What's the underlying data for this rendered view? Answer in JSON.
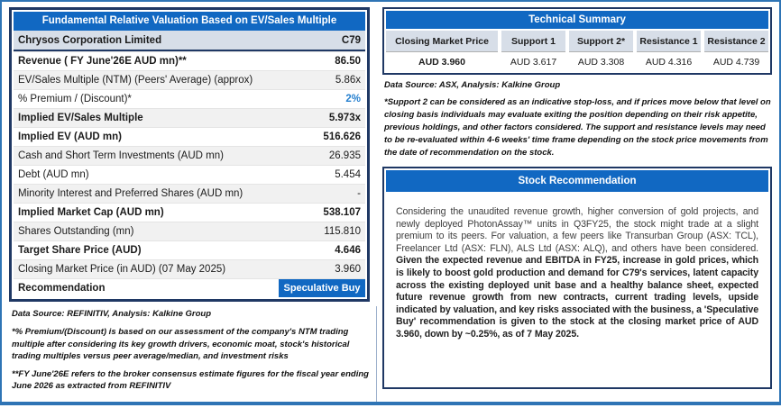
{
  "valuation_panel": {
    "title": "Fundamental Relative Valuation Based on EV/Sales Multiple",
    "company_row": {
      "label": "Chrysos Corporation Limited",
      "value": "C79"
    },
    "rows": [
      {
        "label": "Revenue ( FY June'26E AUD mn)**",
        "value": "86.50"
      },
      {
        "label": "EV/Sales Multiple (NTM)  (Peers' Average) (approx)",
        "value": "5.86x"
      },
      {
        "label": "% Premium / (Discount)*",
        "value": "2%"
      },
      {
        "label": "Implied EV/Sales Multiple",
        "value": "5.973x"
      },
      {
        "label": "Implied EV (AUD mn)",
        "value": "516.626"
      },
      {
        "label": "Cash and Short Term Investments (AUD mn)",
        "value": "26.935"
      },
      {
        "label": "Debt (AUD mn)",
        "value": "5.454"
      },
      {
        "label": "Minority Interest and Preferred Shares (AUD mn)",
        "value": "-"
      },
      {
        "label": "Implied Market Cap (AUD mn)",
        "value": "538.107"
      },
      {
        "label": "Shares Outstanding (mn)",
        "value": "115.810"
      },
      {
        "label": "Target Share Price (AUD)",
        "value": "4.646"
      },
      {
        "label": "Closing Market Price (in AUD) (07 May 2025)",
        "value": "3.960"
      },
      {
        "label": "Recommendation",
        "value": "Speculative Buy"
      }
    ],
    "source_note": "Data Source: REFINITIV, Analysis: Kalkine Group",
    "footnote1": "*% Premium/(Discount) is based on our assessment of the company's NTM trading multiple after considering its key growth drivers, economic moat, stock's historical trading multiples versus peer average/median, and investment risks",
    "footnote2": "**FY June'26E refers to the broker consensus estimate figures for the fiscal year ending June 2026 as extracted from REFINITIV"
  },
  "technical_panel": {
    "title": "Technical Summary",
    "columns": [
      "Closing Market Price",
      "Support 1",
      "Support 2*",
      "Resistance 1",
      "Resistance 2"
    ],
    "values": [
      "AUD 3.960",
      "AUD 3.617",
      "AUD 3.308",
      "AUD 4.316",
      "AUD 4.739"
    ],
    "source_note": "Data Source: ASX, Analysis: Kalkine Group",
    "footnote": "*Support 2 can be considered as an indicative stop-loss, and if prices move below that level on closing basis individuals may evaluate exiting the position depending on their risk appetite, previous holdings, and other factors considered. The support and resistance levels may need to be re-evaluated within 4-6 weeks' time frame depending on the stock price movements from the date of recommendation on the stock."
  },
  "recommendation_panel": {
    "title": "Stock Recommendation",
    "paragraph_regular": "Considering the unaudited revenue growth, higher conversion of gold projects,  and newly deployed PhotonAssay™ units in Q3FY25, the stock might trade at a slight premium to its peers. For valuation, a few peers like Transurban Group (ASX: TCL), Freelancer Ltd (ASX: FLN), ALS Ltd (ASX: ALQ), and others have been considered. ",
    "paragraph_bold": "Given the expected revenue and EBITDA in FY25, increase in gold prices, which is likely to boost gold production and demand for C79's services, latent capacity across the existing deployed unit base and a healthy balance sheet, expected future revenue growth from new contracts, current trading levels, upside indicated by valuation, and key risks associated with the business, a 'Speculative Buy' recommendation is given to the stock at the closing market price of AUD 3.960, down by ~0.25%, as of 7 May 2025."
  },
  "colors": {
    "header_blue": "#1168C2",
    "navy_border": "#1F3864",
    "light_blue_fill": "#D7DEE8",
    "alt_row_fill": "#F1F1F1",
    "accent_value_blue": "#2680CF",
    "frame_blue": "#2E74B5"
  }
}
